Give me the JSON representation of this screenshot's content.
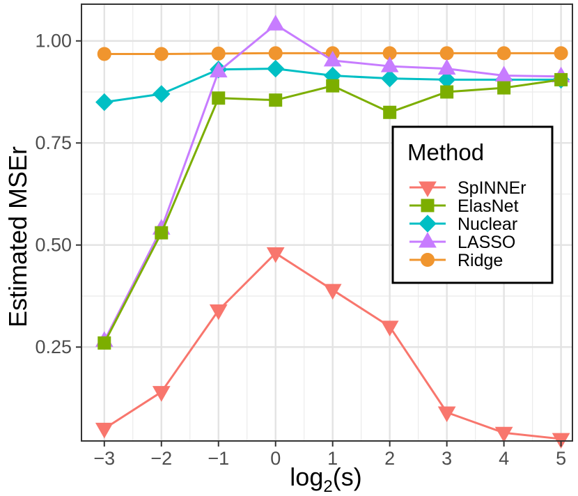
{
  "chart_data": {
    "type": "line",
    "title": "",
    "xlabel_base": "log",
    "xlabel_sub": "2",
    "xlabel_tail": "(s)",
    "ylabel": "Estimated MSEr",
    "x": [
      -3,
      -2,
      -1,
      0,
      1,
      2,
      3,
      4,
      5
    ],
    "x_tick_labels": [
      "−3",
      "−2",
      "−1",
      "0",
      "1",
      "2",
      "3",
      "4",
      "5"
    ],
    "y_ticks": [
      0.25,
      0.5,
      0.75,
      1.0
    ],
    "y_tick_labels": [
      "0.25",
      "0.50",
      "0.75",
      "1.00"
    ],
    "xlim": [
      -3.4,
      5.2
    ],
    "ylim": [
      0.02,
      1.09
    ],
    "grid": true,
    "legend_title": "Method",
    "legend_position": "right",
    "series": [
      {
        "name": "SpINNEr",
        "color": "#F8766D",
        "marker": "triangle-down",
        "values": [
          0.05,
          0.14,
          0.34,
          0.48,
          0.39,
          0.3,
          0.09,
          0.04,
          0.025
        ]
      },
      {
        "name": "ElasNet",
        "color": "#7CAE00",
        "marker": "square",
        "values": [
          0.26,
          0.53,
          0.86,
          0.855,
          0.89,
          0.825,
          0.875,
          0.885,
          0.905
        ]
      },
      {
        "name": "Nuclear",
        "color": "#00BFC4",
        "marker": "diamond",
        "values": [
          0.85,
          0.87,
          0.93,
          0.932,
          0.915,
          0.908,
          0.905,
          0.905,
          0.905
        ]
      },
      {
        "name": "LASSO",
        "color": "#C77CFF",
        "marker": "triangle-up",
        "values": [
          0.265,
          0.54,
          0.925,
          1.04,
          0.952,
          0.938,
          0.932,
          0.915,
          0.913
        ]
      },
      {
        "name": "Ridge",
        "color": "#F0952E",
        "marker": "circle",
        "values": [
          0.968,
          0.968,
          0.969,
          0.97,
          0.97,
          0.97,
          0.97,
          0.97,
          0.97
        ]
      }
    ]
  }
}
